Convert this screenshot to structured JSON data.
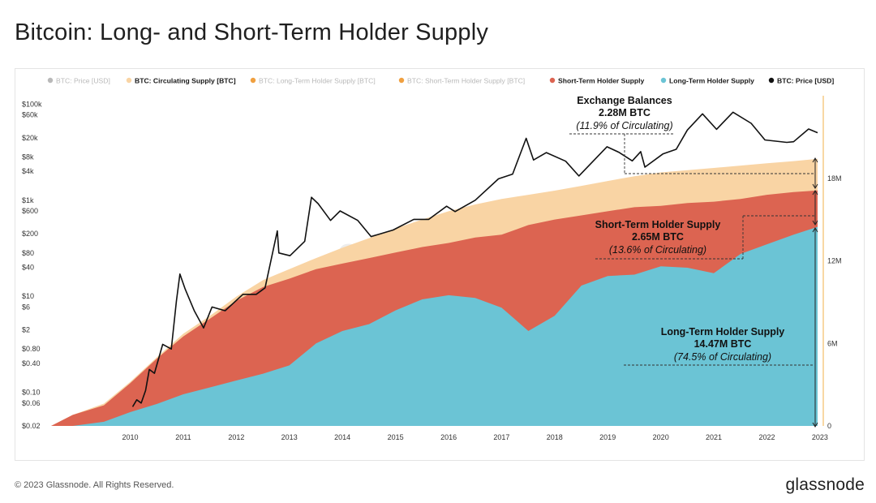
{
  "header": {
    "title": "Bitcoin: Long- and Short-Term Holder Supply"
  },
  "footer": {
    "copyright": "© 2023 Glassnode. All Rights Reserved.",
    "brand": "glassnode"
  },
  "colors": {
    "circulating": "#f9d4a4",
    "sth": "#dc6451",
    "lth": "#6bc4d5",
    "price": "#111111",
    "axis_right_line": "#f2b04a",
    "muted_legend": "#b9b9b9",
    "muted_orange": "#f0a040"
  },
  "legend": [
    {
      "label": "BTC: Price [USD]",
      "color": "#b9b9b9",
      "muted": true
    },
    {
      "label": "BTC: Circulating Supply [BTC]",
      "color": "#f9d4a4",
      "muted": false
    },
    {
      "label": "BTC: Long-Term Holder Supply [BTC]",
      "color": "#f0a040",
      "muted": true
    },
    {
      "label": "BTC: Short-Term Holder Supply [BTC]",
      "color": "#f0a040",
      "muted": true
    },
    {
      "label": "Short-Term Holder Supply",
      "color": "#dc6451",
      "muted": false
    },
    {
      "label": "Long-Term Holder Supply",
      "color": "#6bc4d5",
      "muted": false
    },
    {
      "label": "BTC: Price [USD]",
      "color": "#111111",
      "muted": false
    }
  ],
  "annotations": {
    "exchange": {
      "title": "Exchange Balances",
      "value": "2.28M BTC",
      "pct": "(11.9% of Circulating)"
    },
    "sth": {
      "title": "Short-Term Holder Supply",
      "value": "2.65M BTC",
      "pct": "(13.6% of Circulating)"
    },
    "lth": {
      "title": "Long-Term Holder Supply",
      "value": "14.47M BTC",
      "pct": "(74.5% of Circulating)"
    }
  },
  "watermark": "glassnode",
  "chart_data": {
    "type": "area",
    "x_axis": {
      "type": "date",
      "range": [
        "2009-01-03",
        "2023-06-15"
      ],
      "ticks": [
        "2010",
        "2011",
        "2012",
        "2013",
        "2014",
        "2015",
        "2016",
        "2017",
        "2018",
        "2019",
        "2020",
        "2021",
        "2022",
        "2023"
      ]
    },
    "y_axis_left": {
      "label": "",
      "scale": "log",
      "range": [
        0.02,
        150000
      ],
      "ticks": [
        {
          "value": 100000,
          "label": "$100k"
        },
        {
          "value": 60000,
          "label": "$60k"
        },
        {
          "value": 20000,
          "label": "$20k"
        },
        {
          "value": 8000,
          "label": "$8k"
        },
        {
          "value": 4000,
          "label": "$4k"
        },
        {
          "value": 1000,
          "label": "$1k"
        },
        {
          "value": 600,
          "label": "$600"
        },
        {
          "value": 200,
          "label": "$200"
        },
        {
          "value": 80,
          "label": "$80"
        },
        {
          "value": 40,
          "label": "$40"
        },
        {
          "value": 10,
          "label": "$10"
        },
        {
          "value": 6,
          "label": "$6"
        },
        {
          "value": 2,
          "label": "$2"
        },
        {
          "value": 0.8,
          "label": "$0.80"
        },
        {
          "value": 0.4,
          "label": "$0.40"
        },
        {
          "value": 0.1,
          "label": "$0.10"
        },
        {
          "value": 0.06,
          "label": "$0.06"
        },
        {
          "value": 0.02,
          "label": "$0.02"
        }
      ]
    },
    "y_axis_right": {
      "label": "",
      "scale": "linear",
      "range": [
        0,
        24000000
      ],
      "ticks": [
        {
          "value": 0,
          "label": "0"
        },
        {
          "value": 6000000,
          "label": "6M"
        },
        {
          "value": 12000000,
          "label": "12M"
        },
        {
          "value": 18000000,
          "label": "18M"
        }
      ]
    },
    "grid": false,
    "legend_position": "top",
    "series": [
      {
        "name": "BTC: Circulating Supply [BTC]",
        "axis": "right",
        "points": [
          [
            "2009-01-03",
            0
          ],
          [
            "2009-06-01",
            800000
          ],
          [
            "2010-01-01",
            1620000
          ],
          [
            "2010-07-01",
            3200000
          ],
          [
            "2011-01-01",
            5000000
          ],
          [
            "2011-07-01",
            6700000
          ],
          [
            "2012-01-01",
            8000000
          ],
          [
            "2012-07-01",
            9400000
          ],
          [
            "2013-01-01",
            10600000
          ],
          [
            "2013-07-01",
            11400000
          ],
          [
            "2014-01-01",
            12200000
          ],
          [
            "2014-07-01",
            12950000
          ],
          [
            "2015-01-01",
            13650000
          ],
          [
            "2015-07-01",
            14350000
          ],
          [
            "2016-01-01",
            15000000
          ],
          [
            "2016-07-01",
            15600000
          ],
          [
            "2017-01-01",
            16100000
          ],
          [
            "2017-07-01",
            16500000
          ],
          [
            "2018-01-01",
            16800000
          ],
          [
            "2018-07-01",
            17100000
          ],
          [
            "2019-01-01",
            17450000
          ],
          [
            "2019-07-01",
            17800000
          ],
          [
            "2020-01-01",
            18150000
          ],
          [
            "2020-07-01",
            18430000
          ],
          [
            "2021-01-01",
            18590000
          ],
          [
            "2021-07-01",
            18750000
          ],
          [
            "2022-01-01",
            18920000
          ],
          [
            "2022-07-01",
            19090000
          ],
          [
            "2023-01-01",
            19250000
          ],
          [
            "2023-06-15",
            19410000
          ]
        ]
      },
      {
        "name": "Short-Term Holder Supply",
        "axis": "right",
        "points": [
          [
            "2009-01-03",
            0
          ],
          [
            "2009-06-01",
            800000
          ],
          [
            "2010-01-01",
            1500000
          ],
          [
            "2010-07-01",
            3100000
          ],
          [
            "2011-01-01",
            4900000
          ],
          [
            "2011-07-01",
            6500000
          ],
          [
            "2012-01-01",
            7800000
          ],
          [
            "2012-07-01",
            9100000
          ],
          [
            "2013-01-01",
            10100000
          ],
          [
            "2013-07-01",
            10700000
          ],
          [
            "2014-01-01",
            11400000
          ],
          [
            "2014-07-01",
            11800000
          ],
          [
            "2015-01-01",
            12200000
          ],
          [
            "2015-07-01",
            12600000
          ],
          [
            "2016-01-01",
            13000000
          ],
          [
            "2016-07-01",
            13300000
          ],
          [
            "2017-01-01",
            13700000
          ],
          [
            "2017-07-01",
            13900000
          ],
          [
            "2018-01-01",
            14600000
          ],
          [
            "2018-07-01",
            15000000
          ],
          [
            "2019-01-01",
            15300000
          ],
          [
            "2019-07-01",
            15600000
          ],
          [
            "2020-01-01",
            15900000
          ],
          [
            "2020-07-01",
            16000000
          ],
          [
            "2021-01-01",
            16200000
          ],
          [
            "2021-07-01",
            16300000
          ],
          [
            "2022-01-01",
            16500000
          ],
          [
            "2022-07-01",
            16800000
          ],
          [
            "2023-01-01",
            17000000
          ],
          [
            "2023-06-15",
            17120000
          ]
        ]
      },
      {
        "name": "Long-Term Holder Supply",
        "axis": "right",
        "points": [
          [
            "2009-01-03",
            0
          ],
          [
            "2009-06-01",
            0
          ],
          [
            "2010-01-01",
            300000
          ],
          [
            "2010-07-01",
            1000000
          ],
          [
            "2011-01-01",
            1600000
          ],
          [
            "2011-07-01",
            2300000
          ],
          [
            "2012-01-01",
            2800000
          ],
          [
            "2012-07-01",
            3300000
          ],
          [
            "2013-01-01",
            3800000
          ],
          [
            "2013-07-01",
            4400000
          ],
          [
            "2014-01-01",
            6000000
          ],
          [
            "2014-07-01",
            6900000
          ],
          [
            "2015-01-01",
            7400000
          ],
          [
            "2015-07-01",
            8400000
          ],
          [
            "2016-01-01",
            9200000
          ],
          [
            "2016-07-01",
            9500000
          ],
          [
            "2017-01-01",
            9300000
          ],
          [
            "2017-07-01",
            8600000
          ],
          [
            "2018-01-01",
            6900000
          ],
          [
            "2018-07-01",
            8000000
          ],
          [
            "2019-01-01",
            10200000
          ],
          [
            "2019-07-01",
            10900000
          ],
          [
            "2020-01-01",
            11000000
          ],
          [
            "2020-07-01",
            11600000
          ],
          [
            "2021-01-01",
            11500000
          ],
          [
            "2021-07-01",
            11100000
          ],
          [
            "2022-01-01",
            12500000
          ],
          [
            "2022-07-01",
            13200000
          ],
          [
            "2023-01-01",
            13900000
          ],
          [
            "2023-06-15",
            14470000
          ]
        ]
      },
      {
        "name": "BTC: Price [USD]",
        "axis": "left",
        "points": [
          [
            "2010-07-18",
            0.05
          ],
          [
            "2010-08-15",
            0.07
          ],
          [
            "2010-09-15",
            0.06
          ],
          [
            "2010-10-15",
            0.11
          ],
          [
            "2010-11-10",
            0.3
          ],
          [
            "2010-12-15",
            0.25
          ],
          [
            "2011-02-10",
            1.0
          ],
          [
            "2011-04-10",
            0.8
          ],
          [
            "2011-05-15",
            8
          ],
          [
            "2011-06-08",
            29
          ],
          [
            "2011-07-15",
            14
          ],
          [
            "2011-09-15",
            5
          ],
          [
            "2011-11-18",
            2.2
          ],
          [
            "2012-01-15",
            6
          ],
          [
            "2012-04-15",
            5
          ],
          [
            "2012-08-15",
            11
          ],
          [
            "2012-11-15",
            11
          ],
          [
            "2013-01-15",
            15
          ],
          [
            "2013-04-09",
            230
          ],
          [
            "2013-04-20",
            80
          ],
          [
            "2013-07-05",
            70
          ],
          [
            "2013-10-15",
            140
          ],
          [
            "2013-11-30",
            1150
          ],
          [
            "2014-01-15",
            850
          ],
          [
            "2014-04-10",
            380
          ],
          [
            "2014-06-15",
            600
          ],
          [
            "2014-10-15",
            380
          ],
          [
            "2015-01-14",
            175
          ],
          [
            "2015-06-15",
            240
          ],
          [
            "2015-11-04",
            400
          ],
          [
            "2016-02-15",
            400
          ],
          [
            "2016-06-17",
            750
          ],
          [
            "2016-08-15",
            580
          ],
          [
            "2017-01-01",
            1000
          ],
          [
            "2017-06-10",
            2800
          ],
          [
            "2017-09-15",
            3500
          ],
          [
            "2017-12-17",
            19500
          ],
          [
            "2018-02-06",
            6900
          ],
          [
            "2018-05-05",
            9800
          ],
          [
            "2018-09-15",
            6500
          ],
          [
            "2018-12-15",
            3200
          ],
          [
            "2019-06-26",
            13000
          ],
          [
            "2019-09-15",
            10000
          ],
          [
            "2019-12-17",
            6600
          ],
          [
            "2020-02-13",
            10300
          ],
          [
            "2020-03-13",
            4900
          ],
          [
            "2020-07-15",
            9200
          ],
          [
            "2020-10-15",
            11500
          ],
          [
            "2020-12-31",
            29000
          ],
          [
            "2021-04-14",
            63000
          ],
          [
            "2021-07-20",
            30000
          ],
          [
            "2021-11-10",
            68000
          ],
          [
            "2022-03-15",
            40000
          ],
          [
            "2022-06-18",
            18000
          ],
          [
            "2022-11-15",
            16000
          ],
          [
            "2023-01-01",
            16500
          ],
          [
            "2023-04-14",
            30400
          ],
          [
            "2023-06-15",
            25500
          ]
        ]
      }
    ]
  }
}
